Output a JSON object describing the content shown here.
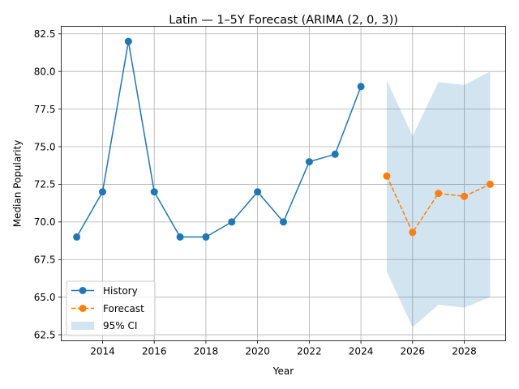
{
  "chart_data": {
    "type": "line",
    "title": "Latin — 1–5Y Forecast (ARIMA (2, 0, 3))",
    "xlabel": "Year",
    "ylabel": "Median Popularity",
    "xlim": [
      2012.4,
      2029.6
    ],
    "ylim": [
      62.1,
      83.0
    ],
    "grid": true,
    "legend_position": "lower-left",
    "x_ticks": [
      2014,
      2016,
      2018,
      2020,
      2022,
      2024,
      2026,
      2028
    ],
    "x_tick_labels": [
      "2014",
      "2016",
      "2018",
      "2020",
      "2022",
      "2024",
      "2026",
      "2028"
    ],
    "y_ticks": [
      62.5,
      65.0,
      67.5,
      70.0,
      72.5,
      75.0,
      77.5,
      80.0,
      82.5
    ],
    "y_tick_labels": [
      "62.5",
      "65.0",
      "67.5",
      "70.0",
      "72.5",
      "75.0",
      "77.5",
      "80.0",
      "82.5"
    ],
    "series": [
      {
        "name": "History",
        "style": "solid-line-circle-markers",
        "color": "#1f77b4",
        "x": [
          2013,
          2014,
          2015,
          2016,
          2017,
          2018,
          2019,
          2020,
          2021,
          2022,
          2023,
          2024
        ],
        "y": [
          69.0,
          72.0,
          82.0,
          72.0,
          69.0,
          69.0,
          70.0,
          72.0,
          70.0,
          74.0,
          74.5,
          79.0
        ]
      },
      {
        "name": "Forecast",
        "style": "dashed-line-circle-markers",
        "color": "#ff7f0e",
        "x": [
          2025,
          2026,
          2027,
          2028,
          2029
        ],
        "y": [
          73.05,
          69.3,
          71.9,
          71.7,
          72.5
        ]
      }
    ],
    "confidence_band": {
      "name": "95% CI",
      "color": "#1f77b4",
      "x": [
        2025,
        2026,
        2027,
        2028,
        2029
      ],
      "lower": [
        66.7,
        63.0,
        64.5,
        64.3,
        65.0
      ],
      "upper": [
        79.4,
        75.7,
        79.3,
        79.1,
        80.0
      ]
    }
  }
}
